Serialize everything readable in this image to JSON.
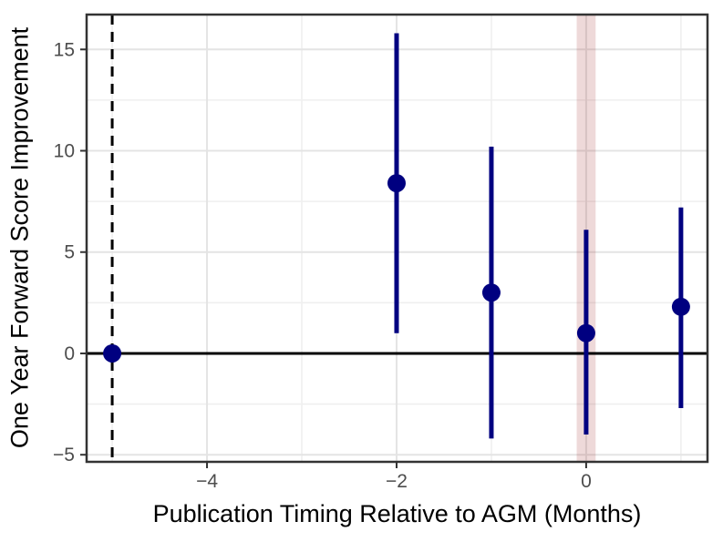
{
  "figure": {
    "title": ""
  },
  "chart_data": {
    "type": "scatter",
    "subtype": "pointrange-coefficient-plot",
    "title": "",
    "xlabel": "Publication Timing Relative to AGM (Months)",
    "ylabel": "One Year Forward Score Improvement",
    "x": [
      -5,
      -2,
      -1,
      0,
      1
    ],
    "series": [
      {
        "name": "estimate",
        "values": [
          0,
          8.4,
          3.0,
          1.0,
          2.3
        ]
      },
      {
        "name": "ci_lower",
        "values": [
          0,
          1.0,
          -4.2,
          -4.0,
          -2.7
        ]
      },
      {
        "name": "ci_upper",
        "values": [
          0,
          15.8,
          10.2,
          6.1,
          7.2
        ]
      }
    ],
    "x_ticks": [
      -4,
      -2,
      0
    ],
    "x_tick_labels": [
      "−4",
      "−2",
      "0"
    ],
    "y_ticks": [
      -5,
      0,
      5,
      10,
      15
    ],
    "y_tick_labels": [
      "−5",
      "0",
      "5",
      "10",
      "15"
    ],
    "x_minor_gridlines": [
      -5,
      -3,
      -1,
      1
    ],
    "y_minor_gridlines": [
      -2.5,
      2.5,
      7.5,
      12.5
    ],
    "xlim": [
      -5.27,
      1.28
    ],
    "ylim": [
      -5.35,
      16.72
    ],
    "grid": true,
    "legend": false,
    "reference_lines": {
      "vline_dashed_x": -5,
      "hline_solid_y": 0
    },
    "shaded_band": {
      "x_min": -0.1,
      "x_max": 0.1,
      "color": "#8B0000",
      "opacity": 0.15
    },
    "colors": {
      "point": "#000080",
      "reference_line": "#000000",
      "tick_label": "#4d4d4d",
      "axis_title": "#000000",
      "panel_border": "#333333",
      "major_grid": "#e4e4e4",
      "minor_grid": "#efefef"
    }
  }
}
